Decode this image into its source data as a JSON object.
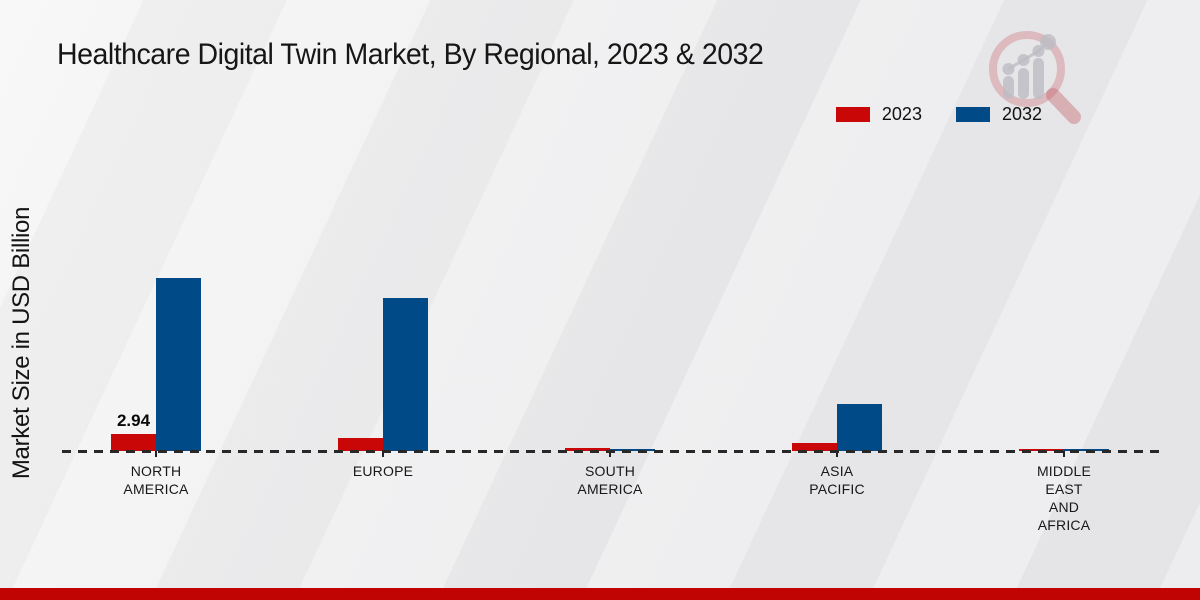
{
  "chart_data": {
    "type": "bar",
    "title": "Healthcare Digital Twin Market, By Regional, 2023 & 2032",
    "xlabel": "",
    "ylabel": "Market Size in USD Billion",
    "categories": [
      "NORTH AMERICA",
      "EUROPE",
      "SOUTH AMERICA",
      "ASIA PACIFIC",
      "MIDDLE EAST AND AFRICA"
    ],
    "category_label_lines": [
      [
        "NORTH",
        "AMERICA"
      ],
      [
        "EUROPE"
      ],
      [
        "SOUTH",
        "AMERICA"
      ],
      [
        "ASIA",
        "PACIFIC"
      ],
      [
        "MIDDLE",
        "EAST",
        "AND",
        "AFRICA"
      ]
    ],
    "series": [
      {
        "name": "2023",
        "color": "#c90707",
        "values": [
          2.94,
          2.3,
          0.5,
          1.45,
          0.42
        ]
      },
      {
        "name": "2032",
        "color": "#004a87",
        "values": [
          30.0,
          26.5,
          0.38,
          8.1,
          0.32
        ]
      }
    ],
    "bar_labels": [
      {
        "series": 0,
        "category": 0,
        "text": "2.94"
      }
    ],
    "ylim": [
      0,
      31
    ],
    "grid": false,
    "legend_position": "top-right",
    "baseline_style": "dashed"
  },
  "footer": {
    "color": "#c00303"
  },
  "watermark": {
    "icon": "magnifier-bar-chart-logo"
  }
}
